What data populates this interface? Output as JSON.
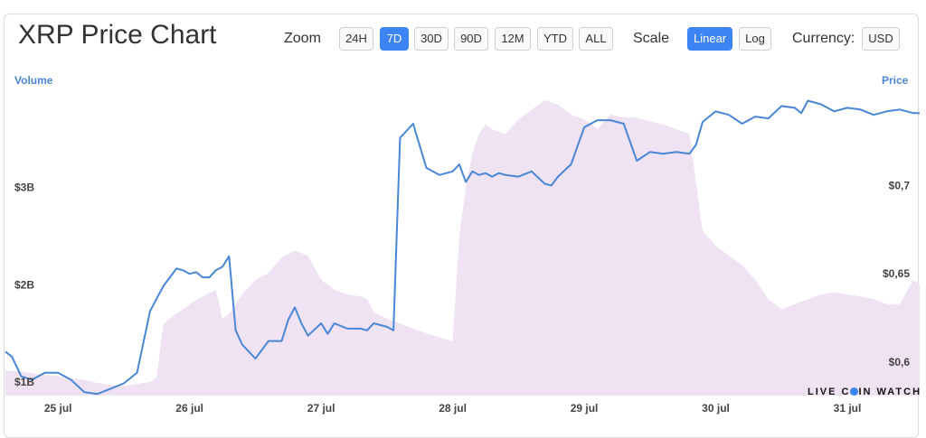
{
  "header": {
    "title": "XRP Price Chart"
  },
  "toolbar": {
    "zoom_label": "Zoom",
    "zoom_options": [
      "24H",
      "7D",
      "30D",
      "90D",
      "12M",
      "YTD",
      "ALL"
    ],
    "zoom_selected": "7D",
    "scale_label": "Scale",
    "scale_options": [
      "Linear",
      "Log"
    ],
    "scale_selected": "Linear",
    "currency_label": "Currency:",
    "currency_value": "USD"
  },
  "watermark": {
    "text_before": "LIVE C",
    "text_after": "IN WATCH"
  },
  "colors": {
    "accent": "#3d85f5",
    "price_line": "#4a86d8",
    "volume_fill": "#efe2f3"
  },
  "chart_data": {
    "type": "line",
    "left_axis_title": "Volume",
    "right_axis_title": "Price",
    "x_ticks": [
      "25 jul",
      "26 jul",
      "27 jul",
      "28 jul",
      "29 jul",
      "30 jul",
      "31 jul"
    ],
    "volume_ticks": [
      "$1B",
      "$2B",
      "$3B"
    ],
    "price_ticks": [
      "$0,6",
      "$0,65",
      "$0,7"
    ],
    "x_range": [
      24.6,
      31.55
    ],
    "volume_range": [
      0.86,
      4.0
    ],
    "price_range": [
      0.5811,
      0.7539
    ],
    "series": [
      {
        "key": "price",
        "axis": "right",
        "x": [
          24.6,
          24.65,
          24.72,
          24.8,
          24.9,
          25.0,
          25.1,
          25.2,
          25.3,
          25.4,
          25.5,
          25.6,
          25.7,
          25.8,
          25.9,
          25.95,
          26.0,
          26.05,
          26.1,
          26.15,
          26.2,
          26.25,
          26.3,
          26.35,
          26.4,
          26.5,
          26.6,
          26.7,
          26.75,
          26.8,
          26.85,
          26.9,
          27.0,
          27.05,
          27.1,
          27.2,
          27.3,
          27.35,
          27.4,
          27.5,
          27.55,
          27.6,
          27.7,
          27.8,
          27.9,
          28.0,
          28.05,
          28.1,
          28.15,
          28.2,
          28.25,
          28.3,
          28.35,
          28.4,
          28.5,
          28.6,
          28.7,
          28.75,
          28.8,
          28.9,
          29.0,
          29.1,
          29.2,
          29.3,
          29.4,
          29.5,
          29.6,
          29.7,
          29.8,
          29.85,
          29.9,
          30.0,
          30.1,
          30.2,
          30.3,
          30.4,
          30.5,
          30.6,
          30.65,
          30.7,
          30.8,
          30.9,
          31.0,
          31.1,
          31.2,
          31.3,
          31.4,
          31.5,
          31.55
        ],
        "y": [
          0.606,
          0.603,
          0.592,
          0.59,
          0.594,
          0.594,
          0.59,
          0.583,
          0.582,
          0.585,
          0.588,
          0.594,
          0.629,
          0.643,
          0.653,
          0.652,
          0.65,
          0.651,
          0.648,
          0.648,
          0.652,
          0.654,
          0.66,
          0.618,
          0.61,
          0.602,
          0.612,
          0.612,
          0.624,
          0.631,
          0.622,
          0.615,
          0.622,
          0.616,
          0.622,
          0.619,
          0.619,
          0.618,
          0.622,
          0.62,
          0.618,
          0.727,
          0.735,
          0.71,
          0.706,
          0.708,
          0.712,
          0.702,
          0.708,
          0.706,
          0.707,
          0.705,
          0.707,
          0.706,
          0.705,
          0.708,
          0.701,
          0.7,
          0.705,
          0.712,
          0.733,
          0.737,
          0.737,
          0.735,
          0.714,
          0.719,
          0.718,
          0.719,
          0.718,
          0.723,
          0.736,
          0.742,
          0.74,
          0.735,
          0.739,
          0.738,
          0.745,
          0.744,
          0.741,
          0.748,
          0.746,
          0.742,
          0.744,
          0.743,
          0.74,
          0.742,
          0.743,
          0.741,
          0.741
        ]
      },
      {
        "key": "volume",
        "axis": "left",
        "x": [
          24.6,
          24.7,
          24.8,
          24.9,
          25.0,
          25.1,
          25.2,
          25.3,
          25.4,
          25.5,
          25.6,
          25.7,
          25.75,
          25.8,
          25.9,
          26.0,
          26.1,
          26.2,
          26.25,
          26.3,
          26.4,
          26.5,
          26.6,
          26.7,
          26.8,
          26.9,
          27.0,
          27.1,
          27.2,
          27.3,
          27.35,
          27.4,
          27.5,
          27.6,
          27.7,
          27.8,
          27.9,
          28.0,
          28.05,
          28.1,
          28.15,
          28.2,
          28.25,
          28.3,
          28.4,
          28.5,
          28.6,
          28.7,
          28.8,
          28.9,
          29.0,
          29.1,
          29.15,
          29.2,
          29.3,
          29.4,
          29.5,
          29.6,
          29.7,
          29.8,
          29.9,
          30.0,
          30.1,
          30.2,
          30.3,
          30.4,
          30.5,
          30.6,
          30.7,
          30.8,
          30.9,
          31.0,
          31.1,
          31.2,
          31.3,
          31.4,
          31.5,
          31.55
        ],
        "y": [
          1.12,
          1.11,
          1.09,
          1.07,
          1.06,
          1.04,
          1.02,
          0.99,
          0.97,
          0.96,
          0.98,
          1.0,
          1.05,
          1.6,
          1.7,
          1.8,
          1.88,
          1.95,
          1.65,
          1.7,
          1.9,
          2.05,
          2.12,
          2.28,
          2.35,
          2.3,
          2.05,
          1.95,
          1.9,
          1.88,
          1.85,
          1.72,
          1.65,
          1.6,
          1.55,
          1.5,
          1.46,
          1.42,
          2.5,
          3.0,
          3.35,
          3.55,
          3.65,
          3.6,
          3.55,
          3.7,
          3.8,
          3.9,
          3.85,
          3.75,
          3.7,
          3.6,
          3.68,
          3.75,
          3.72,
          3.72,
          3.68,
          3.65,
          3.6,
          3.55,
          2.55,
          2.4,
          2.3,
          2.2,
          2.05,
          1.85,
          1.75,
          1.8,
          1.85,
          1.9,
          1.92,
          1.9,
          1.88,
          1.85,
          1.8,
          1.8,
          2.05,
          2.0
        ]
      }
    ]
  }
}
